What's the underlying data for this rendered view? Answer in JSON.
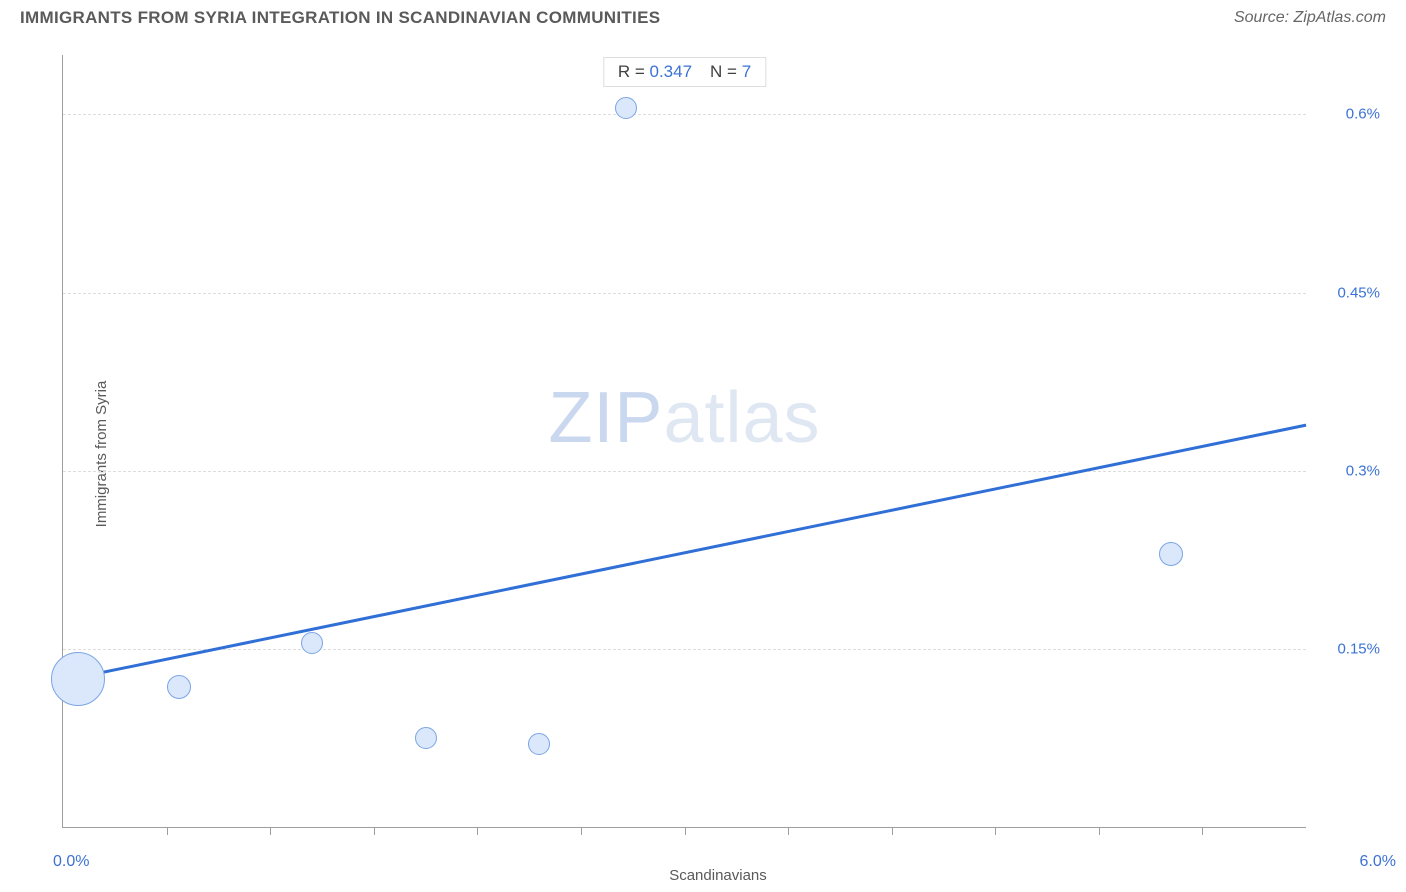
{
  "title": "IMMIGRANTS FROM SYRIA INTEGRATION IN SCANDINAVIAN COMMUNITIES",
  "source": "Source: ZipAtlas.com",
  "chart": {
    "type": "scatter",
    "x_label": "Scandinavians",
    "y_label": "Immigrants from Syria",
    "x_min": 0.0,
    "x_max": 6.0,
    "x_start_label": "0.0%",
    "x_end_label": "6.0%",
    "x_tick_step": 0.5,
    "y_min": 0.0,
    "y_max": 0.65,
    "y_ticks": [
      0.15,
      0.3,
      0.45,
      0.6
    ],
    "y_tick_labels": [
      "0.15%",
      "0.3%",
      "0.45%",
      "0.6%"
    ],
    "grid_color": "#dddddd",
    "axis_color": "#9e9e9e",
    "tick_label_color": "#3b72d4",
    "axis_label_color": "#5a5a5a",
    "background_color": "#ffffff",
    "points": [
      {
        "x": 0.07,
        "y": 0.125,
        "r": 27
      },
      {
        "x": 0.56,
        "y": 0.118,
        "r": 12
      },
      {
        "x": 1.2,
        "y": 0.155,
        "r": 11
      },
      {
        "x": 1.75,
        "y": 0.075,
        "r": 11
      },
      {
        "x": 2.3,
        "y": 0.07,
        "r": 11
      },
      {
        "x": 2.72,
        "y": 0.605,
        "r": 11
      },
      {
        "x": 5.35,
        "y": 0.23,
        "r": 12
      }
    ],
    "point_fill": "#dbe7fa",
    "point_stroke": "#7aa5e6",
    "regression": {
      "color": "#2f6fd6",
      "width": 3,
      "y_at_xmin": 0.125,
      "y_at_xmax": 0.34
    },
    "legend": {
      "r_label": "R =",
      "r_value": "0.347",
      "n_label": "N =",
      "n_value": "7"
    },
    "watermark": {
      "text_bold": "ZIP",
      "text_light": "atlas",
      "color_bold": "#c9d7ef",
      "color_light": "#dfe7f3"
    }
  }
}
